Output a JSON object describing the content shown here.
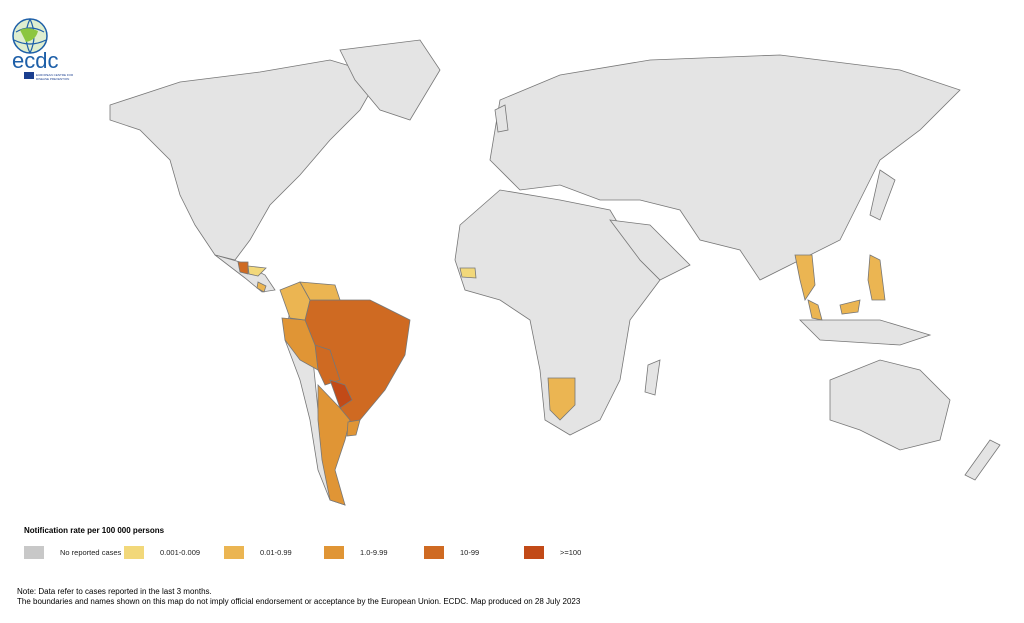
{
  "logo": {
    "text": "ecdc",
    "subtitle": "EUROPEAN CENTRE FOR DISEASE PREVENTION AND CONTROL"
  },
  "legend": {
    "title": "Notification rate per 100 000 persons",
    "items": [
      {
        "label": "No reported cases",
        "color": "#c8c8c8"
      },
      {
        "label": "0.001-0.009",
        "color": "#f2d87a"
      },
      {
        "label": "0.01-0.99",
        "color": "#ebb552"
      },
      {
        "label": "1.0-9.99",
        "color": "#e09535"
      },
      {
        "label": "10-99",
        "color": "#cf6a22"
      },
      {
        "label": ">=100",
        "color": "#c24a17"
      }
    ]
  },
  "map": {
    "land_color": "#e4e4e4",
    "border_color": "#777777",
    "regions": [
      {
        "name": "Brazil",
        "category": "10-99"
      },
      {
        "name": "Bolivia",
        "category": "10-99"
      },
      {
        "name": "Paraguay",
        "category": ">=100"
      },
      {
        "name": "Argentina",
        "category": "1.0-9.99"
      },
      {
        "name": "Peru",
        "category": "1.0-9.99"
      },
      {
        "name": "Uruguay",
        "category": "1.0-9.99"
      },
      {
        "name": "Colombia",
        "category": "0.01-0.99"
      },
      {
        "name": "Venezuela",
        "category": "0.01-0.99"
      },
      {
        "name": "Guatemala",
        "category": "10-99"
      },
      {
        "name": "Honduras",
        "category": "0.001-0.009"
      },
      {
        "name": "Costa Rica",
        "category": "0.01-0.99"
      },
      {
        "name": "Senegal",
        "category": "0.001-0.009"
      },
      {
        "name": "Namibia",
        "category": "0.01-0.99"
      },
      {
        "name": "Thailand",
        "category": "0.01-0.99"
      },
      {
        "name": "Malaysia",
        "category": "0.01-0.99"
      },
      {
        "name": "Philippines",
        "category": "0.01-0.99"
      }
    ]
  },
  "notes": [
    "Note: Data refer to cases reported in the last 3 months.",
    "The boundaries and names shown on this map do not imply official endorsement or acceptance by the European Union. ECDC. Map produced on 28 July 2023"
  ]
}
